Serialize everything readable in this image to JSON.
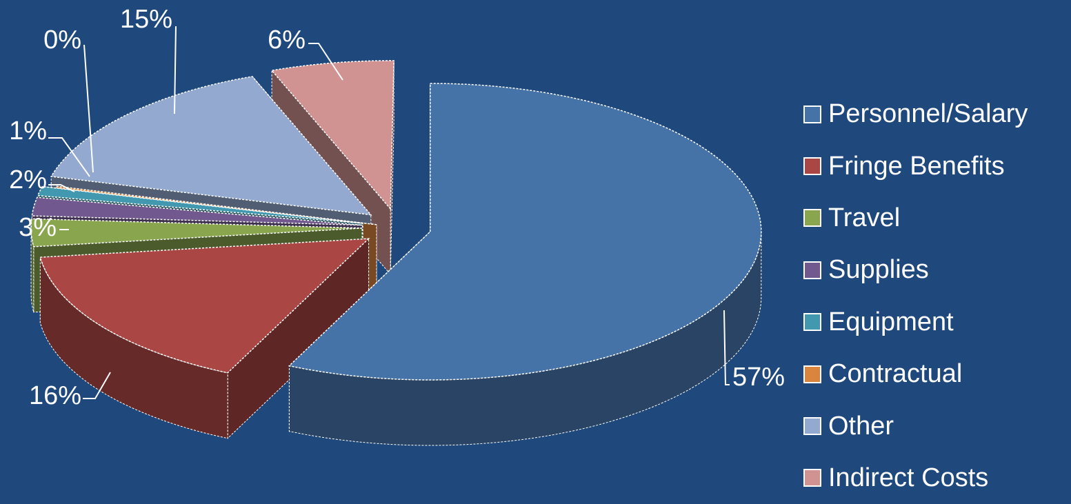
{
  "chart_data": {
    "type": "pie",
    "title": "",
    "legend_position": "right",
    "three_d": true,
    "exploded": true,
    "slices": [
      {
        "name": "Personnel/Salary",
        "value": 57,
        "label": "57%",
        "color": "#4572a7"
      },
      {
        "name": "Fringe Benefits",
        "value": 16,
        "label": "16%",
        "color": "#aa4643"
      },
      {
        "name": "Travel",
        "value": 3,
        "label": "3%",
        "color": "#89a54e"
      },
      {
        "name": "Supplies",
        "value": 2,
        "label": "2%",
        "color": "#71588f"
      },
      {
        "name": "Equipment",
        "value": 1,
        "label": "1%",
        "color": "#4198af"
      },
      {
        "name": "Contractual",
        "value": 0,
        "label": "0%",
        "color": "#db843d"
      },
      {
        "name": "Other",
        "value": 15,
        "label": "15%",
        "color": "#93a9cf"
      },
      {
        "name": "Indirect Costs",
        "value": 6,
        "label": "6%",
        "color": "#d19392"
      }
    ]
  }
}
